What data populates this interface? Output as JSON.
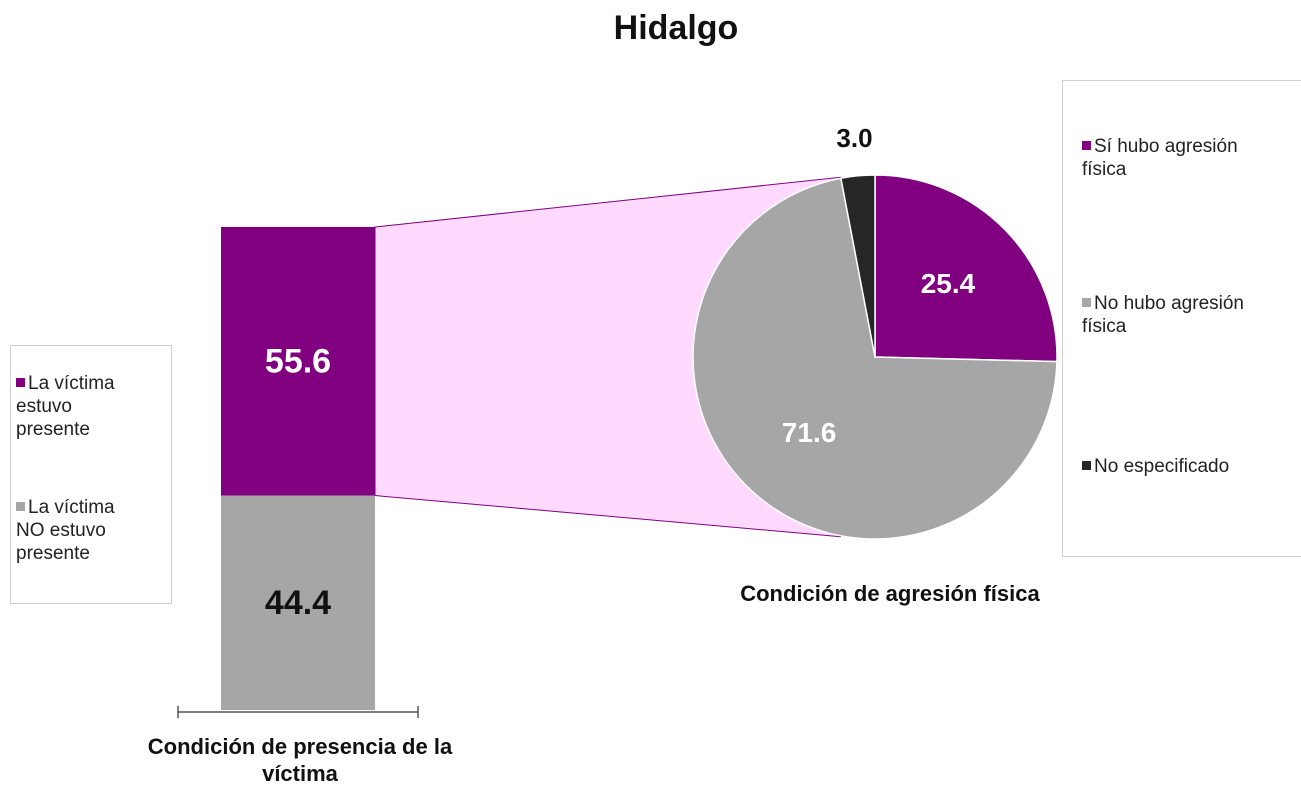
{
  "chart_data": [
    {
      "type": "bar",
      "title": "Hidalgo",
      "xlabel": "Condición de presencia de la víctima",
      "series": [
        {
          "name": "La víctima estuvo presente",
          "color": "#800080",
          "values": [
            55.6
          ]
        },
        {
          "name": "La víctima NO estuvo presente",
          "color": "#a6a6a6",
          "values": [
            44.4
          ]
        }
      ]
    },
    {
      "type": "pie",
      "xlabel": "Condición de agresión física",
      "categories": [
        "Sí hubo agresión física",
        "No hubo agresión física",
        "No especificado"
      ],
      "values": [
        25.4,
        71.6,
        3.0
      ],
      "value_labels": [
        "25.4",
        "71.6",
        "3.0"
      ],
      "colors": [
        "#800080",
        "#a6a6a6",
        "#262626"
      ]
    }
  ]
}
